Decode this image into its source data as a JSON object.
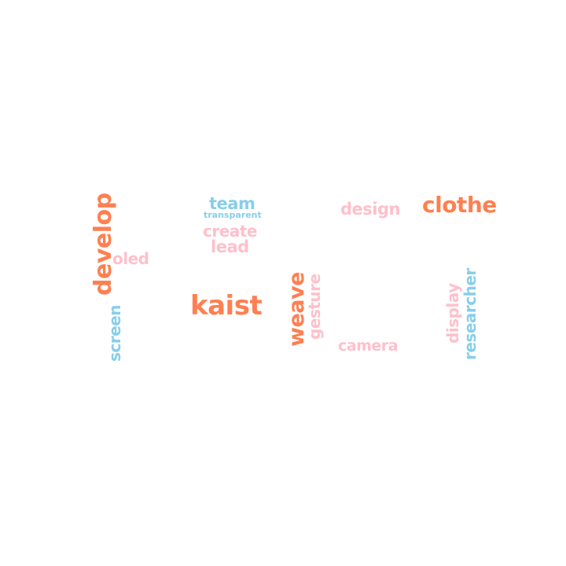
{
  "palette": {
    "orange": "#ff7f50",
    "pink": "#ffc0cb",
    "blue": "#87ceeb"
  },
  "words": {
    "team": "team",
    "transparent": "transparent",
    "create": "create",
    "lead": "lead",
    "design": "design",
    "clothe": "clothe",
    "develop": "develop",
    "oled": "oled",
    "kaist": "kaist",
    "screen": "screen",
    "weave": "weave",
    "gesture": "gesture",
    "camera": "camera",
    "display": "display",
    "researcher": "researcher"
  }
}
